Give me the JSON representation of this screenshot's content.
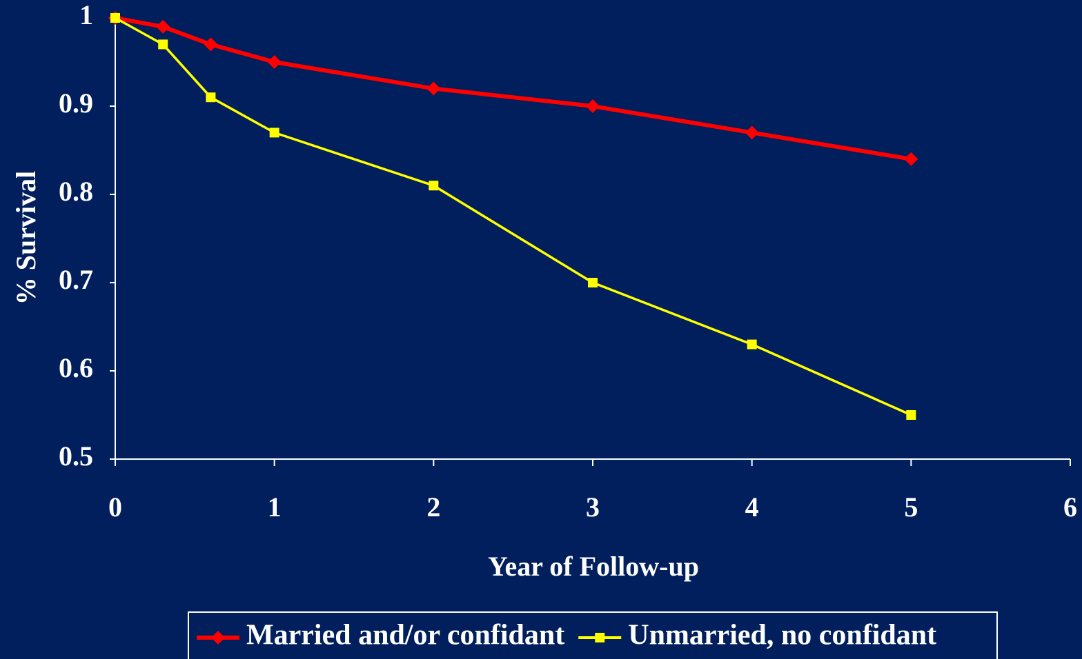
{
  "chart_data": {
    "type": "line",
    "xlabel": "Year of Follow-up",
    "ylabel": "% Survival",
    "x": [
      0,
      0.3,
      0.6,
      1,
      2,
      3,
      4,
      5
    ],
    "series": [
      {
        "name": "Married and/or confidant",
        "color": "#ff0000",
        "marker": "diamond",
        "values": [
          1,
          0.99,
          0.97,
          0.95,
          0.92,
          0.9,
          0.87,
          0.84
        ]
      },
      {
        "name": "Unmarried, no confidant",
        "color": "#ffff00",
        "marker": "square",
        "values": [
          1,
          0.97,
          0.91,
          0.87,
          0.81,
          0.7,
          0.63,
          0.55
        ]
      }
    ],
    "xlim": [
      0,
      6
    ],
    "xticks": [
      0,
      1,
      2,
      3,
      4,
      5,
      6
    ],
    "ylim": [
      0.5,
      1
    ],
    "yticks": [
      0.5,
      0.6,
      0.7,
      0.8,
      0.9,
      1
    ],
    "grid": false,
    "legend": "bottom"
  }
}
